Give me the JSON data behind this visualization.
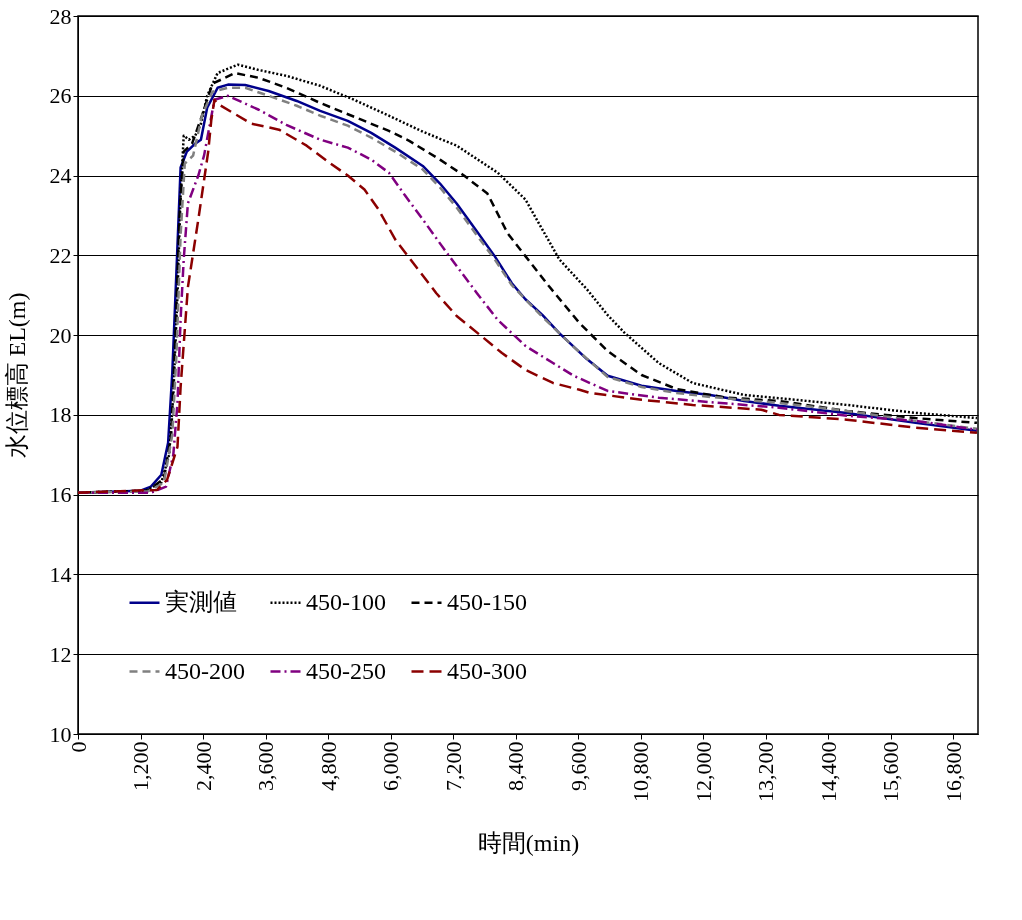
{
  "chart_data": {
    "type": "line",
    "xlabel": "時間(min)",
    "ylabel": "水位標高 EL(m)",
    "xlim": [
      0,
      17280
    ],
    "xticks": [
      {
        "value": 0,
        "label": "0"
      },
      {
        "value": 1200,
        "label": "1,200"
      },
      {
        "value": 2400,
        "label": "2,400"
      },
      {
        "value": 3600,
        "label": "3,600"
      },
      {
        "value": 4800,
        "label": "4,800"
      },
      {
        "value": 6000,
        "label": "6,000"
      },
      {
        "value": 7200,
        "label": "7,200"
      },
      {
        "value": 8400,
        "label": "8,400"
      },
      {
        "value": 9600,
        "label": "9,600"
      },
      {
        "value": 10800,
        "label": "10,800"
      },
      {
        "value": 12000,
        "label": "12,000"
      },
      {
        "value": 13200,
        "label": "13,200"
      },
      {
        "value": 14400,
        "label": "14,400"
      },
      {
        "value": 15600,
        "label": "15,600"
      },
      {
        "value": 16800,
        "label": "16,800"
      }
    ],
    "ylim": [
      10,
      28
    ],
    "yticks": [
      10,
      12,
      14,
      16,
      18,
      20,
      22,
      24,
      26,
      28
    ],
    "grid": "y",
    "legend": "bottom left",
    "marker": "none",
    "series": [
      {
        "name": "実測値",
        "color": "#00008b",
        "line_style": "solid",
        "x": [
          0,
          1200,
          1400,
          1600,
          1730,
          1810,
          1890,
          1970,
          2090,
          2250,
          2360,
          2480,
          2680,
          2880,
          3210,
          3660,
          4200,
          4650,
          5180,
          5630,
          6090,
          6620,
          6950,
          7270,
          7660,
          8000,
          8330,
          8590,
          8920,
          9240,
          9770,
          10170,
          10820,
          11490,
          12140,
          12790,
          13460,
          14760,
          16080,
          17260
        ],
        "values": [
          16.05,
          16.1,
          16.2,
          16.5,
          17.3,
          19.05,
          21.6,
          24.2,
          24.6,
          24.8,
          24.9,
          25.7,
          26.2,
          26.28,
          26.27,
          26.12,
          25.87,
          25.62,
          25.37,
          25.07,
          24.7,
          24.24,
          23.8,
          23.3,
          22.6,
          21.98,
          21.3,
          20.9,
          20.5,
          20.05,
          19.4,
          18.98,
          18.73,
          18.6,
          18.5,
          18.35,
          18.23,
          18.05,
          17.8,
          17.6
        ]
      },
      {
        "name": "450-100",
        "color": "#000000",
        "line_style": "dotted",
        "x": [
          0,
          1300,
          1600,
          1750,
          1830,
          1910,
          1970,
          2030,
          2130,
          2250,
          2360,
          2480,
          2680,
          3070,
          3460,
          4000,
          4650,
          5300,
          5970,
          6620,
          7270,
          8060,
          8590,
          8980,
          9240,
          9770,
          10170,
          10500,
          11150,
          11800,
          12790,
          13770,
          14760,
          16080,
          17260
        ],
        "values": [
          16.05,
          16.1,
          16.3,
          17.0,
          18.5,
          21.0,
          23.5,
          25.0,
          24.9,
          25.0,
          25.3,
          26.0,
          26.57,
          26.78,
          26.65,
          26.5,
          26.25,
          25.9,
          25.5,
          25.1,
          24.75,
          24.07,
          23.4,
          22.5,
          21.9,
          21.15,
          20.5,
          20.05,
          19.3,
          18.8,
          18.5,
          18.38,
          18.25,
          18.05,
          17.92
        ]
      },
      {
        "name": "450-150",
        "color": "#000000",
        "line_style": "dashed",
        "x": [
          0,
          1340,
          1650,
          1790,
          1870,
          1950,
          2030,
          2190,
          2380,
          2580,
          3010,
          3470,
          4000,
          4650,
          5440,
          5970,
          6360,
          6950,
          7410,
          7860,
          8250,
          8590,
          9040,
          9630,
          10170,
          10820,
          11490,
          12140,
          12470,
          13460,
          14760,
          16080,
          17260
        ],
        "values": [
          16.05,
          16.1,
          16.4,
          17.5,
          20.0,
          23.0,
          24.6,
          24.8,
          25.5,
          26.3,
          26.57,
          26.45,
          26.2,
          25.82,
          25.4,
          25.12,
          24.87,
          24.4,
          24.0,
          23.55,
          22.55,
          21.98,
          21.23,
          20.3,
          19.6,
          19.0,
          18.65,
          18.5,
          18.43,
          18.35,
          18.1,
          17.92,
          17.8
        ]
      },
      {
        "name": "450-200",
        "color": "#808080",
        "line_style": "dashed",
        "x": [
          0,
          1340,
          1650,
          1810,
          1890,
          1970,
          2050,
          2210,
          2380,
          2580,
          2880,
          3210,
          3660,
          4200,
          4650,
          5180,
          5630,
          6090,
          6620,
          6950,
          7270,
          7660,
          8000,
          8330,
          8920,
          9520,
          10170,
          10820,
          11490,
          12140,
          13460,
          14760,
          16080,
          17260
        ],
        "values": [
          16.05,
          16.08,
          16.3,
          17.5,
          19.5,
          22.5,
          24.3,
          24.5,
          25.5,
          26.1,
          26.2,
          26.2,
          26.0,
          25.75,
          25.5,
          25.25,
          24.95,
          24.6,
          24.15,
          23.7,
          23.2,
          22.5,
          21.9,
          21.25,
          20.45,
          19.7,
          18.95,
          18.7,
          18.55,
          18.45,
          18.3,
          18.1,
          17.85,
          17.65
        ]
      },
      {
        "name": "450-250",
        "color": "#800080",
        "line_style": "dashdot",
        "x": [
          0,
          1400,
          1690,
          1830,
          1910,
          1970,
          2030,
          2110,
          2310,
          2420,
          2620,
          2880,
          3470,
          4000,
          4650,
          5180,
          5630,
          5970,
          6280,
          6620,
          6950,
          7270,
          7660,
          8060,
          8590,
          9120,
          9520,
          10170,
          11150,
          12140,
          13460,
          14760,
          16080,
          17260
        ],
        "values": [
          16.05,
          16.05,
          16.2,
          17.0,
          18.3,
          20.4,
          21.9,
          23.3,
          24.0,
          24.5,
          25.9,
          26.0,
          25.65,
          25.27,
          24.9,
          24.7,
          24.4,
          24.07,
          23.5,
          22.9,
          22.3,
          21.73,
          21.05,
          20.38,
          19.73,
          19.3,
          18.98,
          18.6,
          18.43,
          18.32,
          18.18,
          17.98,
          17.85,
          17.63
        ]
      },
      {
        "name": "450-300",
        "color": "#8b0000",
        "line_style": "longdash",
        "x": [
          0,
          1520,
          1710,
          1910,
          1970,
          2110,
          2310,
          2500,
          2560,
          2620,
          2680,
          3070,
          3330,
          3860,
          4390,
          4850,
          5180,
          5500,
          5770,
          6090,
          6480,
          6880,
          7270,
          7740,
          8140,
          8590,
          9120,
          9630,
          9830,
          10820,
          11800,
          13120,
          13460,
          14760,
          16080,
          17260
        ],
        "values": [
          16.05,
          16.12,
          16.37,
          17.2,
          18.7,
          21.2,
          22.9,
          24.6,
          25.4,
          25.9,
          25.8,
          25.5,
          25.3,
          25.15,
          24.75,
          24.3,
          24.0,
          23.65,
          23.15,
          22.4,
          21.73,
          21.05,
          20.48,
          19.98,
          19.55,
          19.13,
          18.8,
          18.63,
          18.55,
          18.38,
          18.25,
          18.13,
          18.0,
          17.88,
          17.68,
          17.55
        ]
      }
    ]
  }
}
